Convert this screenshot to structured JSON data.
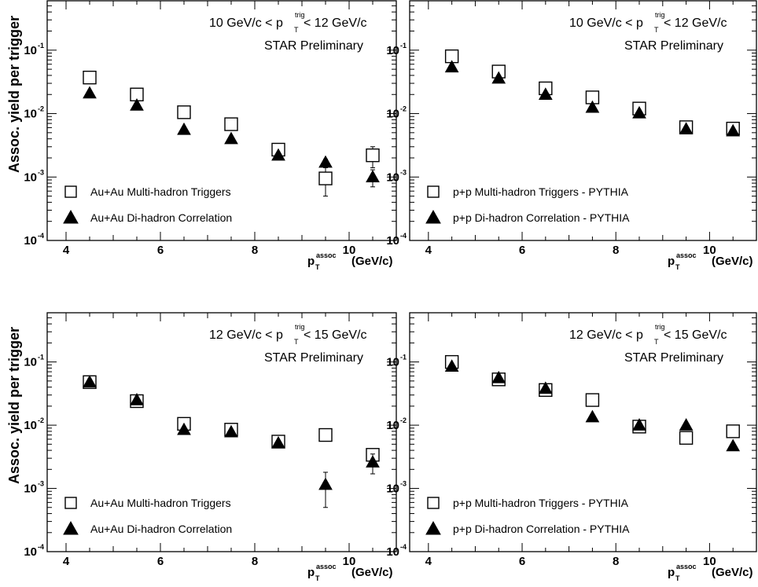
{
  "figure": {
    "ylabel": "Assoc. yield per trigger",
    "xlabel_main": "p",
    "xlabel_sup": "assoc",
    "xlabel_sub": "T",
    "xlabel_unit": "(GeV/c)",
    "preliminary": "STAR Preliminary"
  },
  "chart_data": [
    {
      "type": "scatter",
      "log_y": true,
      "xlim": [
        3.6,
        11.0
      ],
      "ylim": [
        0.0001,
        0.6
      ],
      "x_ticks": [
        4,
        6,
        8,
        10
      ],
      "y_ticks": [
        -4,
        -3,
        -2,
        -1
      ],
      "trigger_range": [
        "10 GeV/c < p",
        "trig",
        "T",
        " < 12 GeV/c"
      ],
      "legend_position": "bottom-left",
      "series": [
        {
          "name": "Au+Au Multi-hadron Triggers",
          "marker": "square",
          "x": [
            4.5,
            5.5,
            6.5,
            7.5,
            8.5,
            9.5,
            10.5
          ],
          "y": [
            0.037,
            0.02,
            0.0105,
            0.0068,
            0.0027,
            0.00095,
            0.0022
          ],
          "err": [
            0.001,
            0.001,
            0.0005,
            0.0004,
            0.0003,
            0.00045,
            0.0008
          ]
        },
        {
          "name": "Au+Au Di-hadron Correlation",
          "marker": "triangle",
          "x": [
            4.5,
            5.5,
            6.5,
            7.5,
            8.5,
            9.5,
            10.5
          ],
          "y": [
            0.021,
            0.0135,
            0.0056,
            0.004,
            0.0022,
            0.0017,
            0.001
          ],
          "err": [
            0.0005,
            0.0004,
            0.0003,
            0.0002,
            0.0002,
            0.0002,
            0.0003
          ]
        }
      ]
    },
    {
      "type": "scatter",
      "log_y": true,
      "xlim": [
        3.6,
        11.0
      ],
      "ylim": [
        0.0001,
        0.6
      ],
      "x_ticks": [
        4,
        6,
        8,
        10
      ],
      "y_ticks": [
        -4,
        -3,
        -2,
        -1
      ],
      "trigger_range": [
        "10 GeV/c < p",
        "trig",
        "T",
        " < 12 GeV/c"
      ],
      "legend_position": "bottom-left",
      "series": [
        {
          "name": "p+p Multi-hadron Triggers - PYTHIA",
          "marker": "square",
          "x": [
            4.5,
            5.5,
            6.5,
            7.5,
            8.5,
            9.5,
            10.5
          ],
          "y": [
            0.08,
            0.046,
            0.025,
            0.018,
            0.012,
            0.0061,
            0.0058
          ],
          "err": [
            0.002,
            0.001,
            0.001,
            0.0005,
            0.0005,
            0.0003,
            0.0003
          ]
        },
        {
          "name": "p+p Di-hadron Correlation - PYTHIA",
          "marker": "triangle",
          "x": [
            4.5,
            5.5,
            6.5,
            7.5,
            8.5,
            9.5,
            10.5
          ],
          "y": [
            0.054,
            0.036,
            0.02,
            0.0125,
            0.0102,
            0.0057,
            0.0053
          ],
          "err": [
            0.001,
            0.001,
            0.0005,
            0.0003,
            0.0003,
            0.0002,
            0.0002
          ]
        }
      ]
    },
    {
      "type": "scatter",
      "log_y": true,
      "xlim": [
        3.6,
        11.0
      ],
      "ylim": [
        0.0001,
        0.6
      ],
      "x_ticks": [
        4,
        6,
        8,
        10
      ],
      "y_ticks": [
        -4,
        -3,
        -2,
        -1
      ],
      "trigger_range": [
        "12 GeV/c < p",
        "trig",
        "T",
        " < 15 GeV/c"
      ],
      "legend_position": "bottom-left",
      "series": [
        {
          "name": "Au+Au Multi-hadron Triggers",
          "marker": "square",
          "x": [
            4.5,
            5.5,
            6.5,
            7.5,
            8.5,
            9.5,
            10.5
          ],
          "y": [
            0.048,
            0.024,
            0.0105,
            0.0085,
            0.0055,
            0.007,
            0.0034
          ],
          "err": [
            0.002,
            0.001,
            0.0005,
            0.0004,
            0.0003,
            0.0004,
            0.0006
          ]
        },
        {
          "name": "Au+Au Di-hadron Correlation",
          "marker": "triangle",
          "x": [
            4.5,
            5.5,
            6.5,
            7.5,
            8.5,
            9.5,
            10.5
          ],
          "y": [
            0.048,
            0.025,
            0.0085,
            0.0078,
            0.0052,
            0.00115,
            0.0026
          ],
          "err": [
            0.002,
            0.001,
            0.0004,
            0.0003,
            0.0003,
            0.00065,
            0.0009
          ]
        }
      ]
    },
    {
      "type": "scatter",
      "log_y": true,
      "xlim": [
        3.6,
        11.0
      ],
      "ylim": [
        0.0001,
        0.6
      ],
      "x_ticks": [
        4,
        6,
        8,
        10
      ],
      "y_ticks": [
        -4,
        -3,
        -2,
        -1
      ],
      "trigger_range": [
        "12 GeV/c < p",
        "trig",
        "T",
        " < 15 GeV/c"
      ],
      "legend_position": "bottom-left",
      "series": [
        {
          "name": "p+p Multi-hadron Triggers - PYTHIA",
          "marker": "square",
          "x": [
            4.5,
            5.5,
            6.5,
            7.5,
            8.5,
            9.5,
            10.5
          ],
          "y": [
            0.1,
            0.053,
            0.036,
            0.025,
            0.0095,
            0.0063,
            0.008
          ],
          "err": [
            0.003,
            0.002,
            0.001,
            0.001,
            0.0005,
            0.0004,
            0.0004
          ]
        },
        {
          "name": "p+p Di-hadron Correlation - PYTHIA",
          "marker": "triangle",
          "x": [
            4.5,
            5.5,
            6.5,
            7.5,
            8.5,
            9.5,
            10.5
          ],
          "y": [
            0.085,
            0.056,
            0.038,
            0.0135,
            0.01,
            0.01,
            0.0047
          ],
          "err": [
            0.002,
            0.002,
            0.001,
            0.0005,
            0.0005,
            0.0005,
            0.0003
          ]
        }
      ]
    }
  ]
}
